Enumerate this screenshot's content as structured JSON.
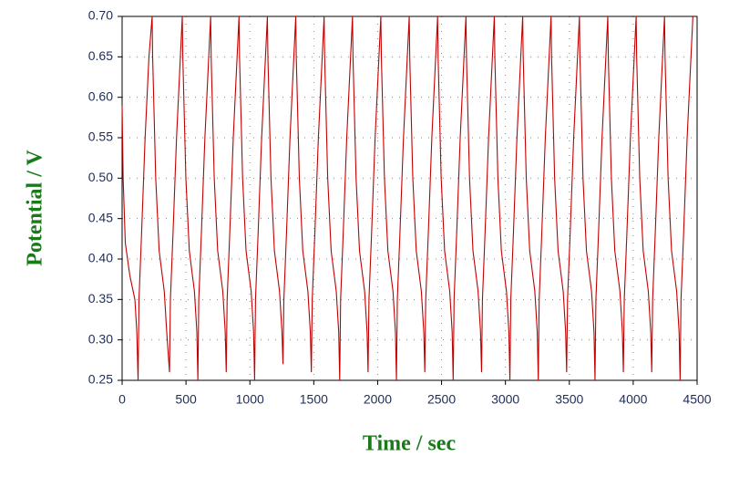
{
  "chart_data": {
    "type": "line",
    "xlabel": "Time / sec",
    "ylabel": "Potential / V",
    "xlim": [
      0,
      4500
    ],
    "ylim": [
      0.25,
      0.7
    ],
    "xticks": [
      0,
      500,
      1000,
      1500,
      2000,
      2500,
      3000,
      3500,
      4000,
      4500
    ],
    "yticks": [
      0.25,
      {
        "value": 0.3,
        "label": "0.30"
      },
      0.35,
      {
        "value": 0.4,
        "label": "0.40"
      },
      0.45,
      {
        "value": 0.5,
        "label": "0.50"
      },
      0.55,
      {
        "value": 0.6,
        "label": "0.60"
      },
      0.65,
      {
        "value": 0.7,
        "label": "0.70"
      }
    ],
    "grid": true,
    "x": [
      0,
      8,
      25,
      60,
      100,
      115,
      125,
      132,
      152,
      180,
      210,
      235,
      239,
      263,
      290,
      330,
      349,
      371,
      378,
      398,
      426,
      456,
      471,
      475,
      499,
      526,
      566,
      585,
      593,
      600,
      620,
      648,
      678,
      693,
      697,
      721,
      748,
      788,
      807,
      815,
      822,
      842,
      870,
      900,
      915,
      919,
      943,
      970,
      1010,
      1029,
      1037,
      1044,
      1064,
      1092,
      1122,
      1137,
      1141,
      1165,
      1192,
      1232,
      1251,
      1259,
      1266,
      1286,
      1314,
      1344,
      1359,
      1363,
      1387,
      1414,
      1454,
      1473,
      1481,
      1488,
      1508,
      1536,
      1566,
      1581,
      1585,
      1609,
      1636,
      1676,
      1695,
      1703,
      1710,
      1730,
      1758,
      1788,
      1803,
      1807,
      1831,
      1858,
      1898,
      1917,
      1925,
      1932,
      1952,
      1980,
      2010,
      2025,
      2029,
      2053,
      2080,
      2120,
      2139,
      2147,
      2154,
      2174,
      2202,
      2232,
      2247,
      2251,
      2275,
      2302,
      2342,
      2361,
      2369,
      2376,
      2396,
      2424,
      2454,
      2469,
      2473,
      2497,
      2524,
      2564,
      2583,
      2591,
      2598,
      2618,
      2646,
      2676,
      2691,
      2695,
      2719,
      2746,
      2786,
      2805,
      2813,
      2820,
      2840,
      2868,
      2898,
      2913,
      2917,
      2941,
      2968,
      3008,
      3027,
      3035,
      3042,
      3062,
      3090,
      3120,
      3135,
      3139,
      3163,
      3190,
      3230,
      3249,
      3257,
      3264,
      3284,
      3312,
      3342,
      3357,
      3361,
      3385,
      3412,
      3452,
      3471,
      3479,
      3486,
      3506,
      3534,
      3564,
      3579,
      3583,
      3607,
      3634,
      3674,
      3693,
      3701,
      3708,
      3728,
      3756,
      3786,
      3801,
      3805,
      3829,
      3856,
      3896,
      3915,
      3923,
      3930,
      3950,
      3978,
      4008,
      4023,
      4027,
      4051,
      4078,
      4118,
      4137,
      4145,
      4152,
      4172,
      4200,
      4230,
      4245,
      4249,
      4273,
      4300,
      4340,
      4359,
      4367,
      4374,
      4394,
      4422,
      4452,
      4467
    ],
    "series": [
      {
        "color": "#c00000",
        "values": [
          0.59,
          0.5,
          0.42,
          0.38,
          0.35,
          0.31,
          0.25,
          0.35,
          0.43,
          0.55,
          0.65,
          0.7,
          0.65,
          0.5,
          0.41,
          0.36,
          0.31,
          0.26,
          0.35,
          0.43,
          0.55,
          0.65,
          0.7,
          0.65,
          0.5,
          0.41,
          0.36,
          0.31,
          0.25,
          0.35,
          0.43,
          0.55,
          0.65,
          0.7,
          0.65,
          0.5,
          0.41,
          0.36,
          0.31,
          0.26,
          0.35,
          0.43,
          0.55,
          0.65,
          0.7,
          0.65,
          0.5,
          0.41,
          0.36,
          0.31,
          0.25,
          0.35,
          0.43,
          0.55,
          0.65,
          0.7,
          0.65,
          0.5,
          0.41,
          0.36,
          0.31,
          0.27,
          0.35,
          0.43,
          0.55,
          0.65,
          0.7,
          0.65,
          0.5,
          0.41,
          0.36,
          0.31,
          0.26,
          0.35,
          0.43,
          0.55,
          0.65,
          0.7,
          0.65,
          0.5,
          0.41,
          0.36,
          0.31,
          0.25,
          0.35,
          0.43,
          0.55,
          0.65,
          0.7,
          0.65,
          0.5,
          0.41,
          0.36,
          0.31,
          0.26,
          0.35,
          0.43,
          0.55,
          0.65,
          0.7,
          0.65,
          0.5,
          0.41,
          0.36,
          0.31,
          0.25,
          0.35,
          0.43,
          0.55,
          0.65,
          0.7,
          0.65,
          0.5,
          0.41,
          0.36,
          0.31,
          0.26,
          0.35,
          0.43,
          0.55,
          0.65,
          0.7,
          0.65,
          0.5,
          0.41,
          0.36,
          0.31,
          0.25,
          0.35,
          0.43,
          0.55,
          0.65,
          0.7,
          0.65,
          0.5,
          0.41,
          0.36,
          0.31,
          0.26,
          0.35,
          0.43,
          0.55,
          0.65,
          0.7,
          0.65,
          0.5,
          0.41,
          0.36,
          0.31,
          0.25,
          0.35,
          0.43,
          0.55,
          0.65,
          0.7,
          0.65,
          0.5,
          0.41,
          0.36,
          0.31,
          0.25,
          0.35,
          0.43,
          0.55,
          0.65,
          0.7,
          0.65,
          0.5,
          0.41,
          0.36,
          0.31,
          0.26,
          0.35,
          0.43,
          0.55,
          0.65,
          0.7,
          0.65,
          0.5,
          0.41,
          0.36,
          0.31,
          0.25,
          0.35,
          0.43,
          0.55,
          0.65,
          0.7,
          0.65,
          0.5,
          0.41,
          0.36,
          0.31,
          0.26,
          0.35,
          0.43,
          0.55,
          0.65,
          0.7,
          0.65,
          0.5,
          0.41,
          0.36,
          0.31,
          0.26,
          0.35,
          0.43,
          0.55,
          0.65,
          0.7,
          0.65,
          0.5,
          0.41,
          0.36,
          0.31,
          0.25,
          0.35,
          0.43,
          0.55,
          0.65,
          0.7
        ]
      }
    ]
  }
}
